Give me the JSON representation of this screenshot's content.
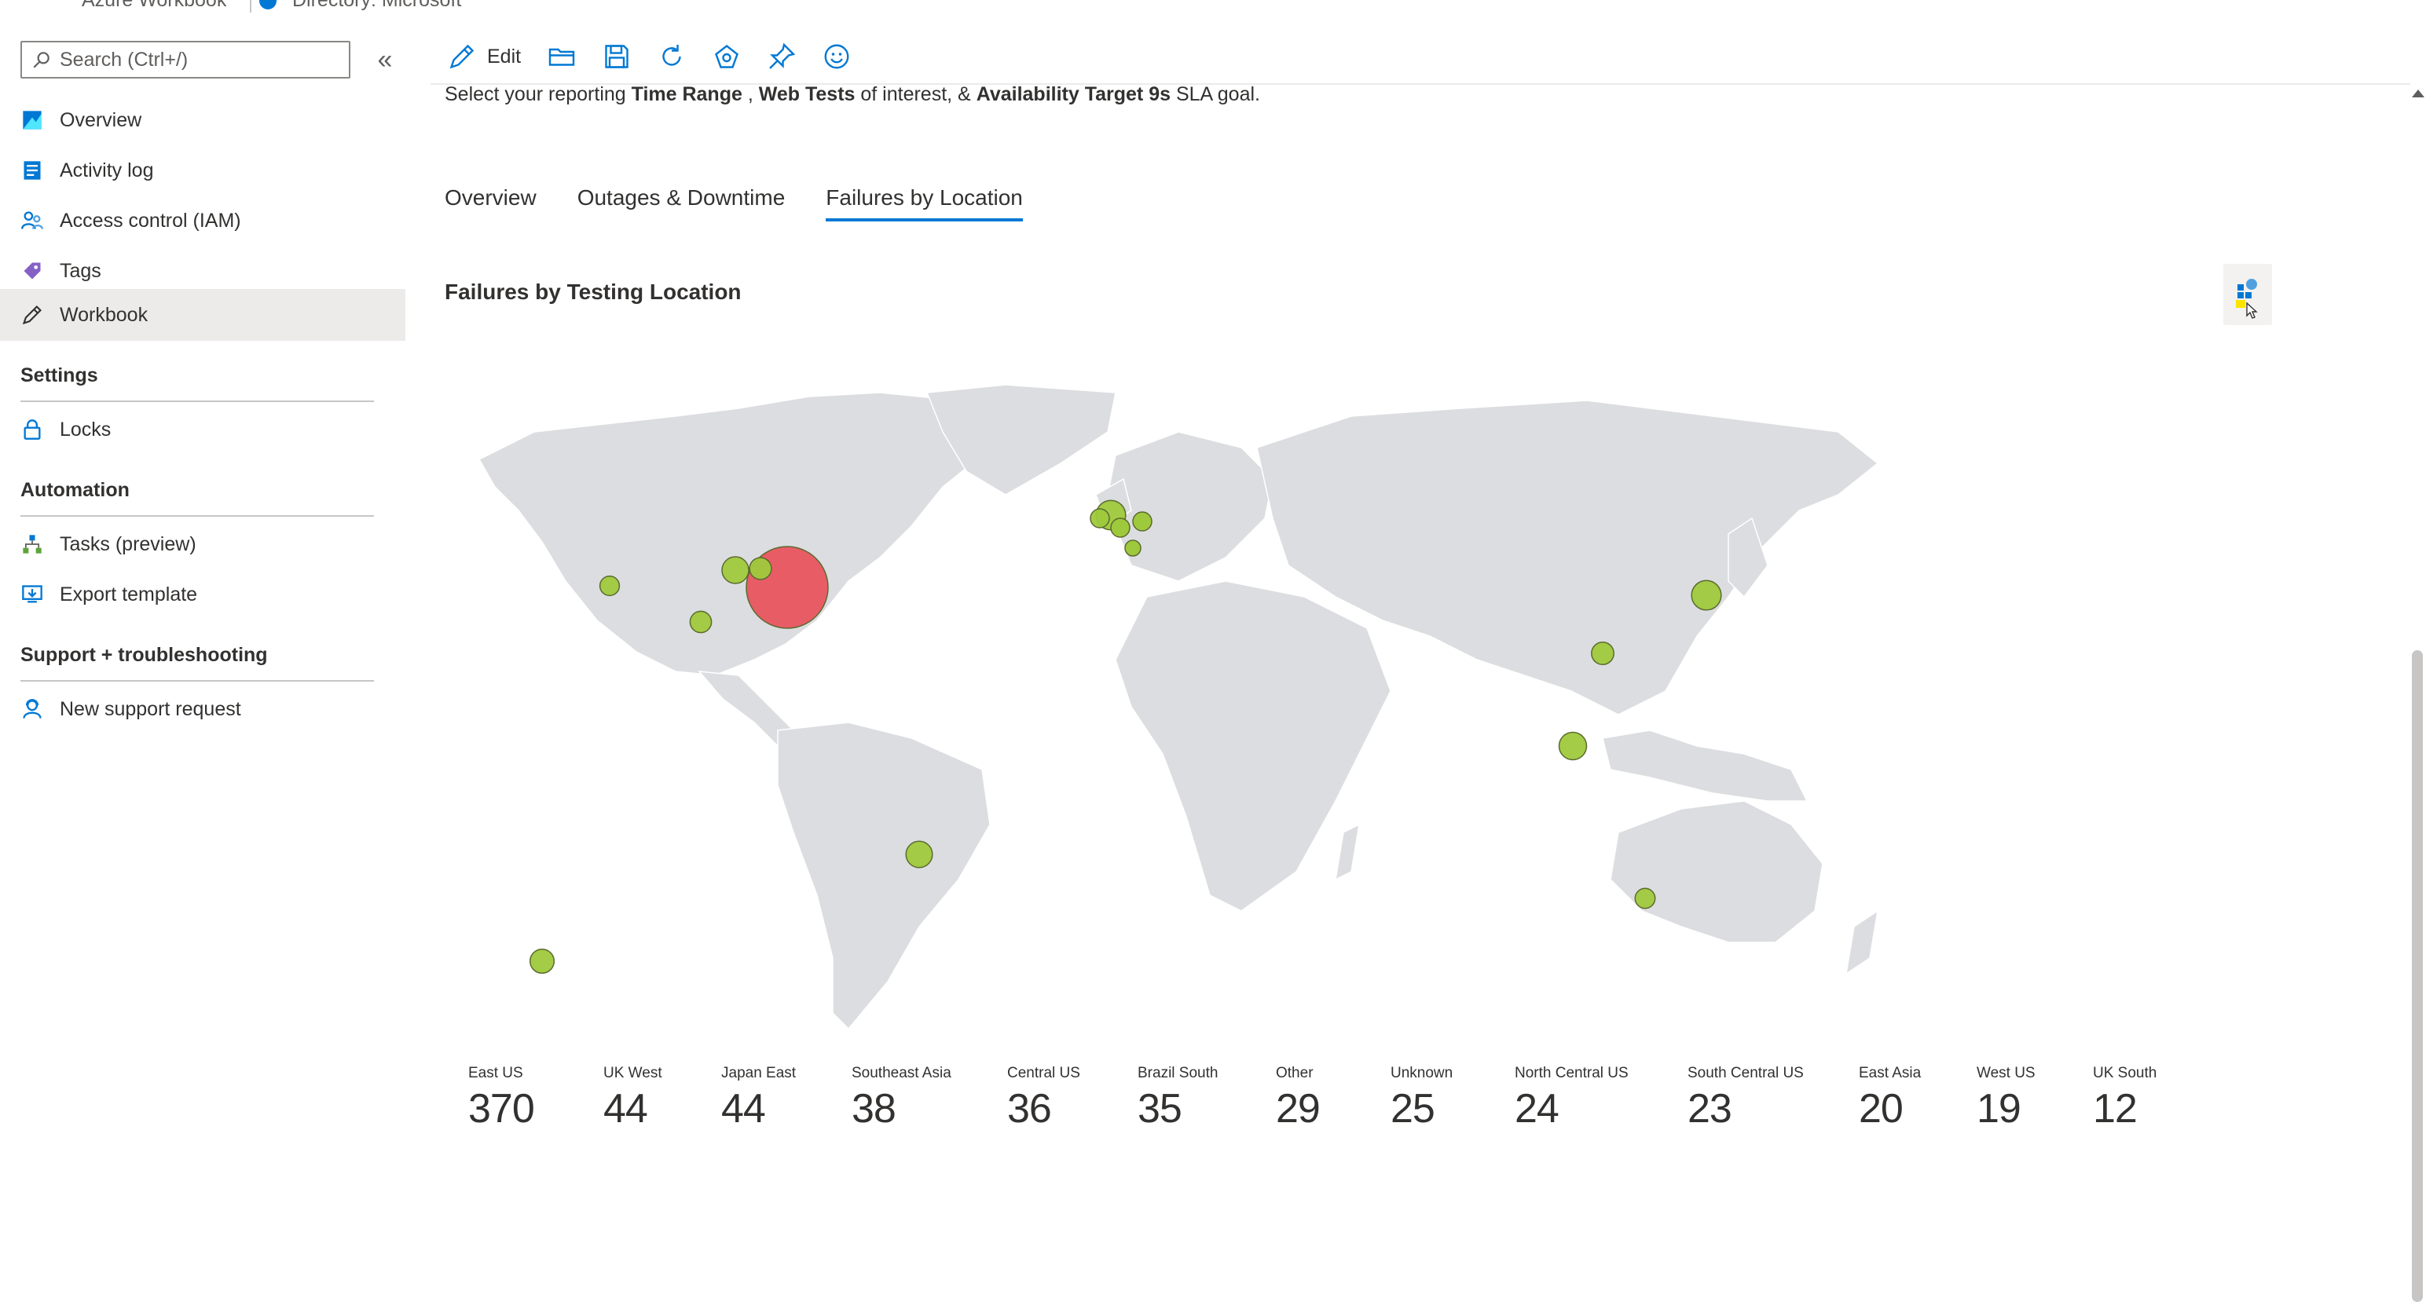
{
  "breadcrumb": {
    "app_name": "Azure Workbook",
    "directory": "Directory: Microsoft"
  },
  "sidebar": {
    "search_placeholder": "Search (Ctrl+/)",
    "collapse_glyph": "«",
    "items": [
      {
        "label": "Overview",
        "icon": "overview-icon"
      },
      {
        "label": "Activity log",
        "icon": "activity-log-icon"
      },
      {
        "label": "Access control (IAM)",
        "icon": "iam-icon"
      },
      {
        "label": "Tags",
        "icon": "tag-icon"
      },
      {
        "label": "Workbook",
        "icon": "pencil-icon",
        "selected": true
      }
    ],
    "sections": [
      {
        "title": "Settings",
        "items": [
          {
            "label": "Locks",
            "icon": "lock-icon"
          }
        ]
      },
      {
        "title": "Automation",
        "items": [
          {
            "label": "Tasks (preview)",
            "icon": "tasks-icon"
          },
          {
            "label": "Export template",
            "icon": "export-template-icon"
          }
        ]
      },
      {
        "title": "Support + troubleshooting",
        "items": [
          {
            "label": "New support request",
            "icon": "support-icon"
          }
        ]
      }
    ]
  },
  "toolbar": {
    "edit_label": "Edit",
    "icons": [
      "open-folder-icon",
      "save-icon",
      "refresh-icon",
      "share-icon",
      "pin-icon",
      "feedback-smiley-icon"
    ]
  },
  "intro": {
    "prefix": "Select your reporting ",
    "b1": "Time Range",
    "sep1": " , ",
    "b2": "Web Tests",
    "mid": " of interest, & ",
    "b3": "Availability Target 9s",
    "suffix": " SLA goal."
  },
  "tabs": [
    {
      "label": "Overview",
      "active": false
    },
    {
      "label": "Outages & Downtime",
      "active": false
    },
    {
      "label": "Failures by Location",
      "active": true
    }
  ],
  "section_title": "Failures by Testing Location",
  "colors": {
    "accent": "#0078d4",
    "bubble_high": "#e8505b",
    "bubble_normal": "#9fc93c",
    "land": "#dcdde0"
  },
  "tiles": [
    {
      "name": "East US",
      "value": "370"
    },
    {
      "name": "UK West",
      "value": "44"
    },
    {
      "name": "Japan East",
      "value": "44"
    },
    {
      "name": "Southeast Asia",
      "value": "38"
    },
    {
      "name": "Central US",
      "value": "36"
    },
    {
      "name": "Brazil South",
      "value": "35"
    },
    {
      "name": "Other",
      "value": "29"
    },
    {
      "name": "Unknown",
      "value": "25"
    },
    {
      "name": "North Central US",
      "value": "24"
    },
    {
      "name": "South Central US",
      "value": "23"
    },
    {
      "name": "East Asia",
      "value": "20"
    },
    {
      "name": "West US",
      "value": "19"
    },
    {
      "name": "UK South",
      "value": "12"
    }
  ]
}
